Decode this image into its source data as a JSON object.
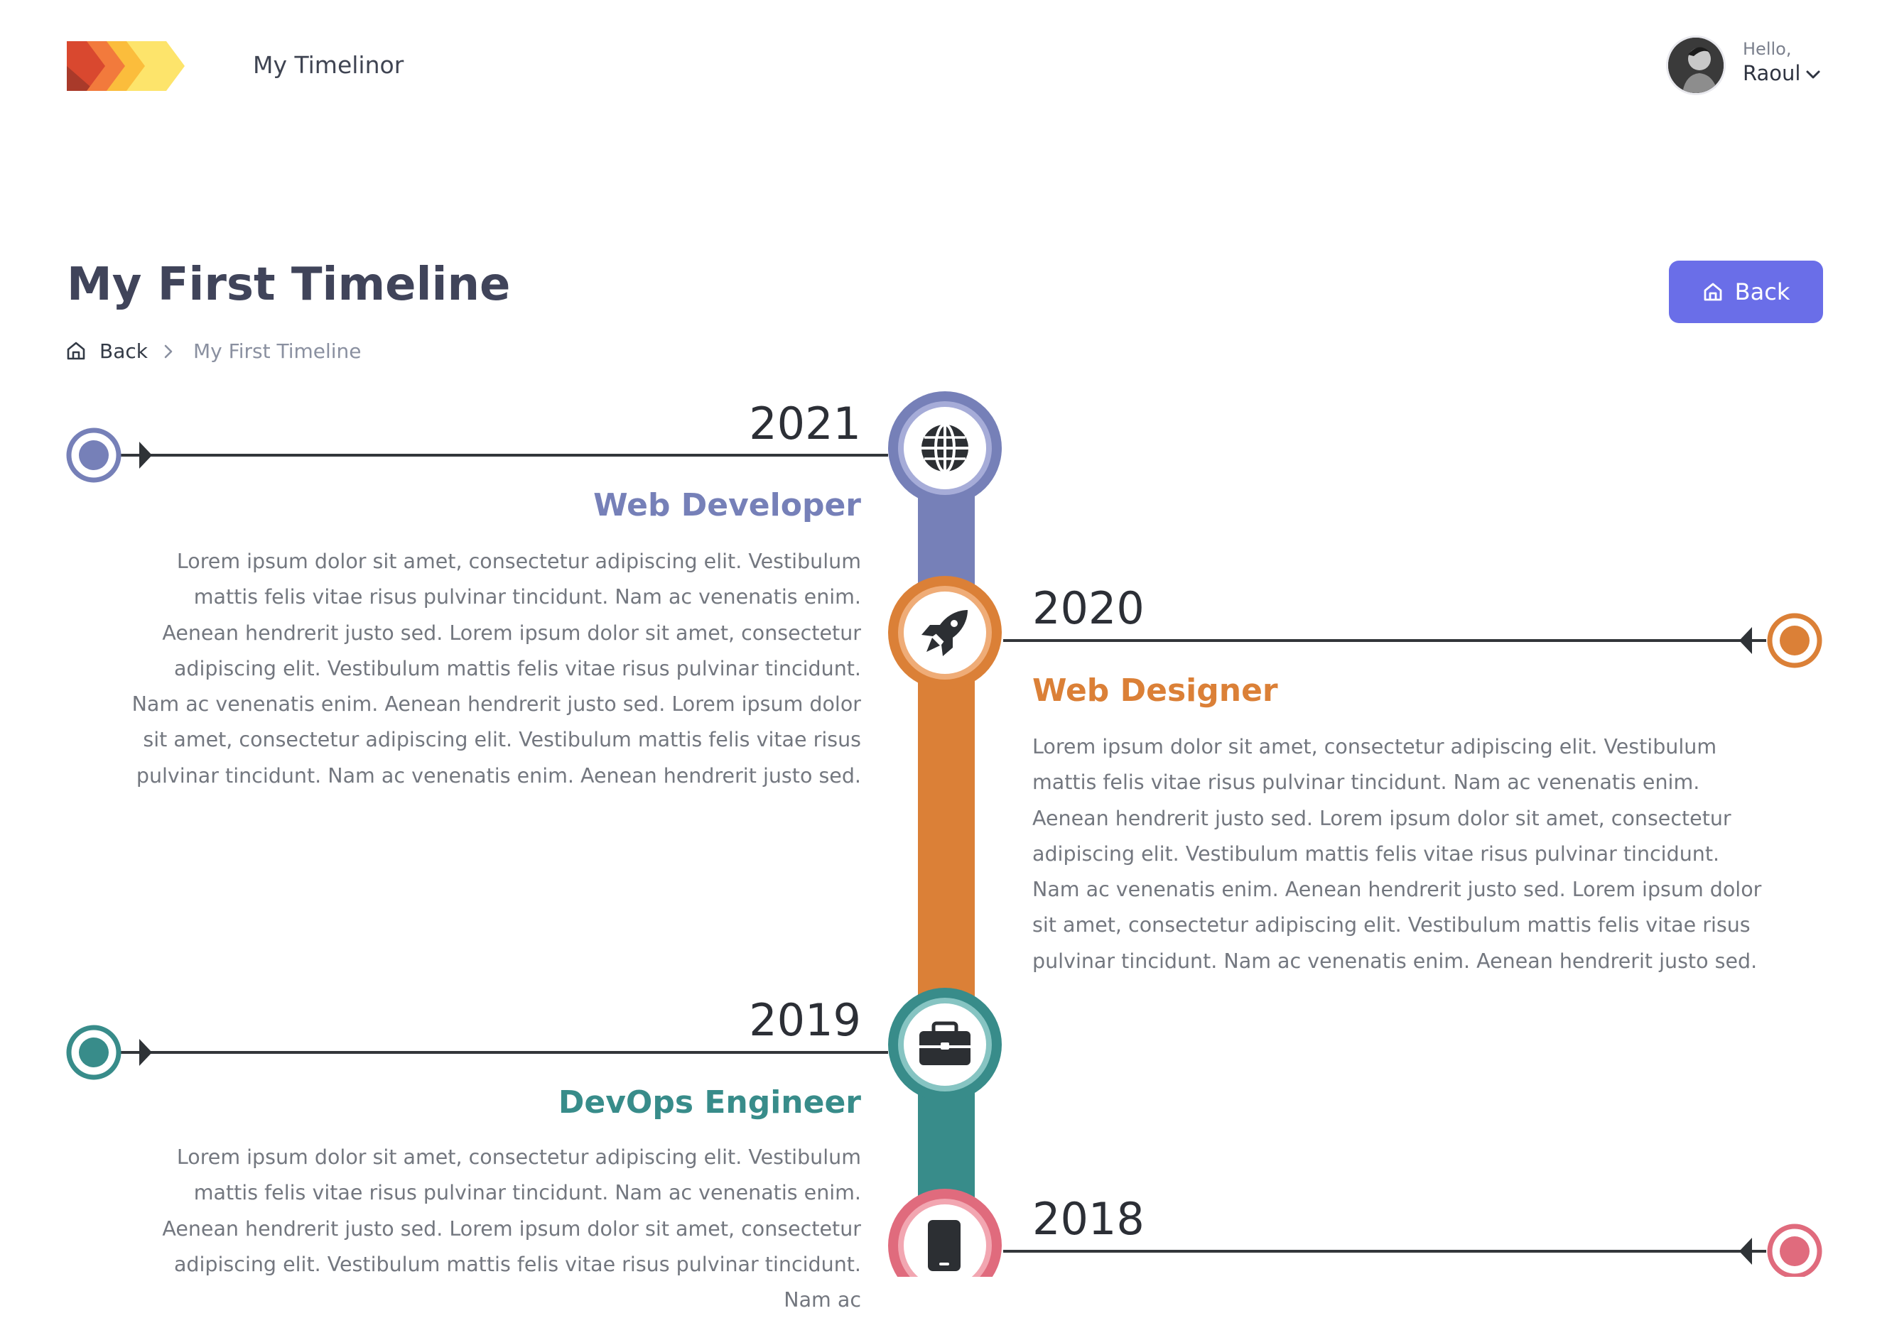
{
  "app": {
    "title": "My Timelinor",
    "logo_colors": [
      "#e85b3a",
      "#f58a3c",
      "#fbc53e",
      "#fde26a"
    ]
  },
  "user": {
    "greeting": "Hello,",
    "name": "Raoul",
    "dropdown_icon": "chevron-down-icon",
    "avatar_icon": "avatar"
  },
  "page": {
    "title": "My First Timeline",
    "back_button_label": "Back",
    "back_button_icon": "home-icon",
    "button_color": "#6a6ee8"
  },
  "breadcrumb": {
    "home_label": "Back",
    "current": "My First Timeline"
  },
  "timeline": {
    "entries": [
      {
        "year": "2021",
        "title": "Web Developer",
        "color": "#7680b8",
        "icon": "globe-icon",
        "side": "left",
        "description": "Lorem ipsum dolor sit amet, consectetur adipiscing elit. Vestibulum mattis felis vitae risus pulvinar tincidunt. Nam ac venenatis enim. Aenean hendrerit justo sed. Lorem ipsum dolor sit amet, consectetur adipiscing elit. Vestibulum mattis felis vitae risus pulvinar tincidunt. Nam ac venenatis enim. Aenean hendrerit justo sed. Lorem ipsum dolor sit amet, consectetur adipiscing elit. Vestibulum mattis felis vitae risus pulvinar tincidunt. Nam ac venenatis enim. Aenean hendrerit justo sed."
      },
      {
        "year": "2020",
        "title": "Web Designer",
        "color": "#db8037",
        "icon": "rocket-icon",
        "side": "right",
        "description": "Lorem ipsum dolor sit amet, consectetur adipiscing elit. Vestibulum mattis felis vitae risus pulvinar tincidunt. Nam ac venenatis enim. Aenean hendrerit justo sed. Lorem ipsum dolor sit amet, consectetur adipiscing elit. Vestibulum mattis felis vitae risus pulvinar tincidunt. Nam ac venenatis enim. Aenean hendrerit justo sed. Lorem ipsum dolor sit amet, consectetur adipiscing elit. Vestibulum mattis felis vitae risus pulvinar tincidunt. Nam ac venenatis enim. Aenean hendrerit justo sed."
      },
      {
        "year": "2019",
        "title": "DevOps Engineer",
        "color": "#388c8a",
        "icon": "briefcase-icon",
        "side": "left",
        "description": "Lorem ipsum dolor sit amet, consectetur adipiscing elit. Vestibulum mattis felis vitae risus pulvinar tincidunt. Nam ac venenatis enim. Aenean hendrerit justo sed. Lorem ipsum dolor sit amet, consectetur adipiscing elit. Vestibulum mattis felis vitae risus pulvinar tincidunt. Nam ac"
      },
      {
        "year": "2018",
        "title": "",
        "color": "#e06b7d",
        "icon": "smartphone-icon",
        "side": "right",
        "description": ""
      }
    ]
  }
}
